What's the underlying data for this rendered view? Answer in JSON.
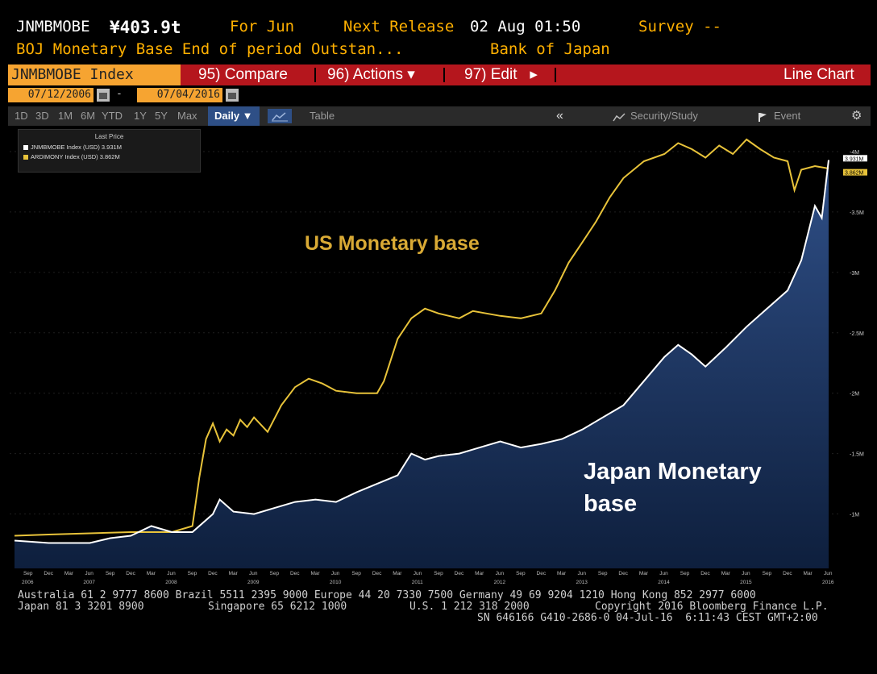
{
  "header": {
    "ticker": "JNMBMOBE",
    "value": "¥403.9t",
    "period": "For Jun",
    "next_release_label": "Next Release",
    "next_release_date": "02 Aug 01:50",
    "survey": "Survey --",
    "description": "BOJ Monetary Base End of period Outstan...",
    "source": "Bank of Japan"
  },
  "menubar": {
    "index": "JNMBMOBE Index",
    "compare": "95) Compare",
    "actions": "96) Actions",
    "edit": "97) Edit",
    "chart_type": "Line Chart"
  },
  "dates": {
    "start": "07/12/2006",
    "dash": "-",
    "end": "07/04/2016"
  },
  "toolbar": {
    "ranges": [
      "1D",
      "3D",
      "1M",
      "6M",
      "YTD",
      "1Y",
      "5Y",
      "Max"
    ],
    "frequency": "Daily ▼",
    "table": "Table",
    "back": "«",
    "security": "Security/Study",
    "event": "Event",
    "settings": "⚙"
  },
  "legend": {
    "title": "Last Price",
    "items": [
      {
        "text": "JNMBMOBE Index (USD) 3.931M",
        "color": "#ffffff"
      },
      {
        "text": "ARDIMONY Index (USD) 3.862M",
        "color": "#e8c33a"
      }
    ]
  },
  "footer": {
    "line1": "Australia 61 2 9777 8600 Brazil 5511 2395 9000 Europe 44 20 7330 7500 Germany 49 69 9204 1210 Hong Kong 852 2977 6000",
    "line2a": "Japan 81 3 3201 8900",
    "line2b": "Singapore 65 6212 1000",
    "line2c": "U.S. 1 212 318 2000",
    "line2d": "Copyright 2016 Bloomberg Finance L.P.",
    "line3": "SN 646166 G410-2686-0 04-Jul-16  6:11:43 CEST GMT+2:00"
  },
  "chart_data": {
    "type": "line",
    "title": "",
    "annotations": [
      "US Monetary base",
      "Japan Monetary base"
    ],
    "ylim": [
      0.55,
      4.2
    ],
    "y_unit": "M",
    "y_ticks": [
      {
        "v": 1.0,
        "label": "1M"
      },
      {
        "v": 1.5,
        "label": "1.5M"
      },
      {
        "v": 2.0,
        "label": "2M"
      },
      {
        "v": 2.5,
        "label": "2.5M"
      },
      {
        "v": 3.0,
        "label": "3M"
      },
      {
        "v": 3.5,
        "label": "3.5M"
      },
      {
        "v": 4.0,
        "label": "4M"
      }
    ],
    "last_labels": [
      "3.931M",
      "3.862M"
    ],
    "month_ticks": [
      "Sep",
      "Dec",
      "Mar",
      "Jun",
      "Sep",
      "Dec",
      "Mar",
      "Jun",
      "Sep",
      "Dec",
      "Mar",
      "Jun",
      "Sep",
      "Dec",
      "Mar",
      "Jun",
      "Sep",
      "Dec",
      "Mar",
      "Jun",
      "Sep",
      "Dec",
      "Mar",
      "Jun",
      "Sep",
      "Dec",
      "Mar",
      "Jun",
      "Sep",
      "Dec",
      "Mar",
      "Jun",
      "Sep",
      "Dec",
      "Mar",
      "Jun",
      "Sep",
      "Dec",
      "Mar",
      "Jun"
    ],
    "year_ticks": [
      {
        "x": "2006-09",
        "label": "2006"
      },
      {
        "x": "2007-06",
        "label": "2007"
      },
      {
        "x": "2008-06",
        "label": "2008"
      },
      {
        "x": "2009-06",
        "label": "2009"
      },
      {
        "x": "2010-06",
        "label": "2010"
      },
      {
        "x": "2011-06",
        "label": "2011"
      },
      {
        "x": "2012-06",
        "label": "2012"
      },
      {
        "x": "2013-06",
        "label": "2013"
      },
      {
        "x": "2014-06",
        "label": "2014"
      },
      {
        "x": "2015-06",
        "label": "2015"
      },
      {
        "x": "2016-06",
        "label": "2016"
      }
    ],
    "series": [
      {
        "name": "ARDIMONY Index (USD)",
        "color": "#e8c33a",
        "points": [
          [
            "2006-07",
            0.82
          ],
          [
            "2006-12",
            0.83
          ],
          [
            "2007-06",
            0.84
          ],
          [
            "2007-12",
            0.85
          ],
          [
            "2008-06",
            0.85
          ],
          [
            "2008-09",
            0.9
          ],
          [
            "2008-10",
            1.3
          ],
          [
            "2008-11",
            1.62
          ],
          [
            "2008-12",
            1.75
          ],
          [
            "2009-01",
            1.6
          ],
          [
            "2009-02",
            1.7
          ],
          [
            "2009-03",
            1.65
          ],
          [
            "2009-04",
            1.78
          ],
          [
            "2009-05",
            1.72
          ],
          [
            "2009-06",
            1.8
          ],
          [
            "2009-08",
            1.68
          ],
          [
            "2009-10",
            1.9
          ],
          [
            "2009-12",
            2.05
          ],
          [
            "2010-02",
            2.12
          ],
          [
            "2010-04",
            2.08
          ],
          [
            "2010-06",
            2.02
          ],
          [
            "2010-09",
            2.0
          ],
          [
            "2010-12",
            2.0
          ],
          [
            "2011-01",
            2.1
          ],
          [
            "2011-03",
            2.45
          ],
          [
            "2011-05",
            2.62
          ],
          [
            "2011-07",
            2.7
          ],
          [
            "2011-09",
            2.66
          ],
          [
            "2011-12",
            2.62
          ],
          [
            "2012-02",
            2.68
          ],
          [
            "2012-04",
            2.66
          ],
          [
            "2012-06",
            2.64
          ],
          [
            "2012-09",
            2.62
          ],
          [
            "2012-12",
            2.66
          ],
          [
            "2013-02",
            2.85
          ],
          [
            "2013-04",
            3.08
          ],
          [
            "2013-06",
            3.25
          ],
          [
            "2013-08",
            3.42
          ],
          [
            "2013-10",
            3.62
          ],
          [
            "2013-12",
            3.78
          ],
          [
            "2014-03",
            3.92
          ],
          [
            "2014-06",
            3.98
          ],
          [
            "2014-08",
            4.07
          ],
          [
            "2014-10",
            4.02
          ],
          [
            "2014-12",
            3.95
          ],
          [
            "2015-02",
            4.05
          ],
          [
            "2015-04",
            3.98
          ],
          [
            "2015-06",
            4.1
          ],
          [
            "2015-08",
            4.02
          ],
          [
            "2015-10",
            3.95
          ],
          [
            "2015-12",
            3.92
          ],
          [
            "2016-01",
            3.68
          ],
          [
            "2016-02",
            3.85
          ],
          [
            "2016-04",
            3.88
          ],
          [
            "2016-06",
            3.86
          ]
        ]
      },
      {
        "name": "JNMBMOBE Index (USD)",
        "color": "#ffffff",
        "points": [
          [
            "2006-07",
            0.78
          ],
          [
            "2006-12",
            0.76
          ],
          [
            "2007-03",
            0.76
          ],
          [
            "2007-06",
            0.76
          ],
          [
            "2007-09",
            0.8
          ],
          [
            "2007-12",
            0.82
          ],
          [
            "2008-03",
            0.9
          ],
          [
            "2008-06",
            0.85
          ],
          [
            "2008-09",
            0.85
          ],
          [
            "2008-12",
            1.0
          ],
          [
            "2009-01",
            1.12
          ],
          [
            "2009-03",
            1.02
          ],
          [
            "2009-06",
            1.0
          ],
          [
            "2009-09",
            1.05
          ],
          [
            "2009-12",
            1.1
          ],
          [
            "2010-03",
            1.12
          ],
          [
            "2010-06",
            1.1
          ],
          [
            "2010-09",
            1.18
          ],
          [
            "2010-12",
            1.25
          ],
          [
            "2011-03",
            1.32
          ],
          [
            "2011-05",
            1.5
          ],
          [
            "2011-07",
            1.45
          ],
          [
            "2011-09",
            1.48
          ],
          [
            "2011-12",
            1.5
          ],
          [
            "2012-03",
            1.55
          ],
          [
            "2012-06",
            1.6
          ],
          [
            "2012-09",
            1.55
          ],
          [
            "2012-12",
            1.58
          ],
          [
            "2013-03",
            1.62
          ],
          [
            "2013-06",
            1.7
          ],
          [
            "2013-09",
            1.8
          ],
          [
            "2013-12",
            1.9
          ],
          [
            "2014-03",
            2.1
          ],
          [
            "2014-06",
            2.3
          ],
          [
            "2014-08",
            2.4
          ],
          [
            "2014-10",
            2.32
          ],
          [
            "2014-12",
            2.22
          ],
          [
            "2015-03",
            2.38
          ],
          [
            "2015-06",
            2.55
          ],
          [
            "2015-09",
            2.7
          ],
          [
            "2015-12",
            2.85
          ],
          [
            "2016-02",
            3.1
          ],
          [
            "2016-04",
            3.55
          ],
          [
            "2016-05",
            3.45
          ],
          [
            "2016-06",
            3.93
          ]
        ]
      }
    ]
  }
}
